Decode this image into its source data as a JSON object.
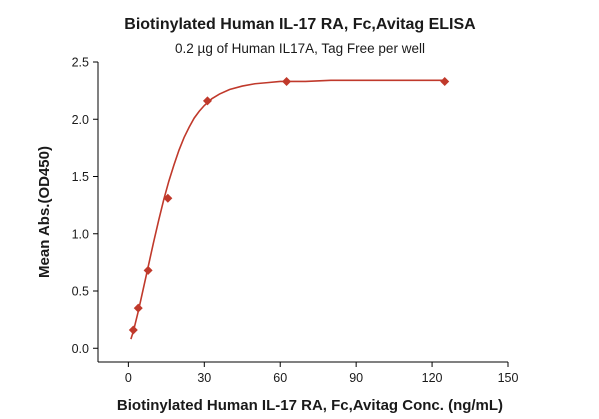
{
  "chart_data": {
    "type": "scatter",
    "title": "Biotinylated Human IL-17 RA, Fc,Avitag ELISA",
    "subtitle": "0.2 µg of Human IL17A, Tag Free per well",
    "xlabel": "Biotinylated Human IL-17 RA, Fc,Avitag Conc. (ng/mL)",
    "ylabel": "Mean Abs.(OD450)",
    "xlim": [
      -12,
      150
    ],
    "ylim": [
      -0.12,
      2.5
    ],
    "x_ticks": [
      0,
      30,
      60,
      90,
      120,
      150
    ],
    "y_ticks": [
      0.0,
      0.5,
      1.0,
      1.5,
      2.0,
      2.5
    ],
    "grid": false,
    "series": [
      {
        "marker": "diamond",
        "x": [
          1.95,
          3.9,
          7.8,
          15.6,
          31.25,
          62.5,
          125
        ],
        "y": [
          0.16,
          0.35,
          0.68,
          1.31,
          2.16,
          2.33,
          2.33
        ]
      }
    ],
    "fit_curve": {
      "x": [
        1,
        2,
        4,
        6,
        8,
        10,
        12,
        14,
        16,
        18,
        20,
        22,
        24,
        26,
        28,
        30,
        33,
        36,
        40,
        45,
        50,
        55,
        60,
        70,
        80,
        90,
        100,
        110,
        120,
        125
      ],
      "y": [
        0.08,
        0.15,
        0.33,
        0.53,
        0.73,
        0.93,
        1.12,
        1.3,
        1.46,
        1.6,
        1.73,
        1.84,
        1.93,
        2.01,
        2.07,
        2.12,
        2.18,
        2.22,
        2.26,
        2.29,
        2.31,
        2.32,
        2.33,
        2.33,
        2.34,
        2.34,
        2.34,
        2.34,
        2.34,
        2.34
      ]
    },
    "colors": {
      "series": "#c0392b",
      "curve": "#c0392b"
    }
  }
}
